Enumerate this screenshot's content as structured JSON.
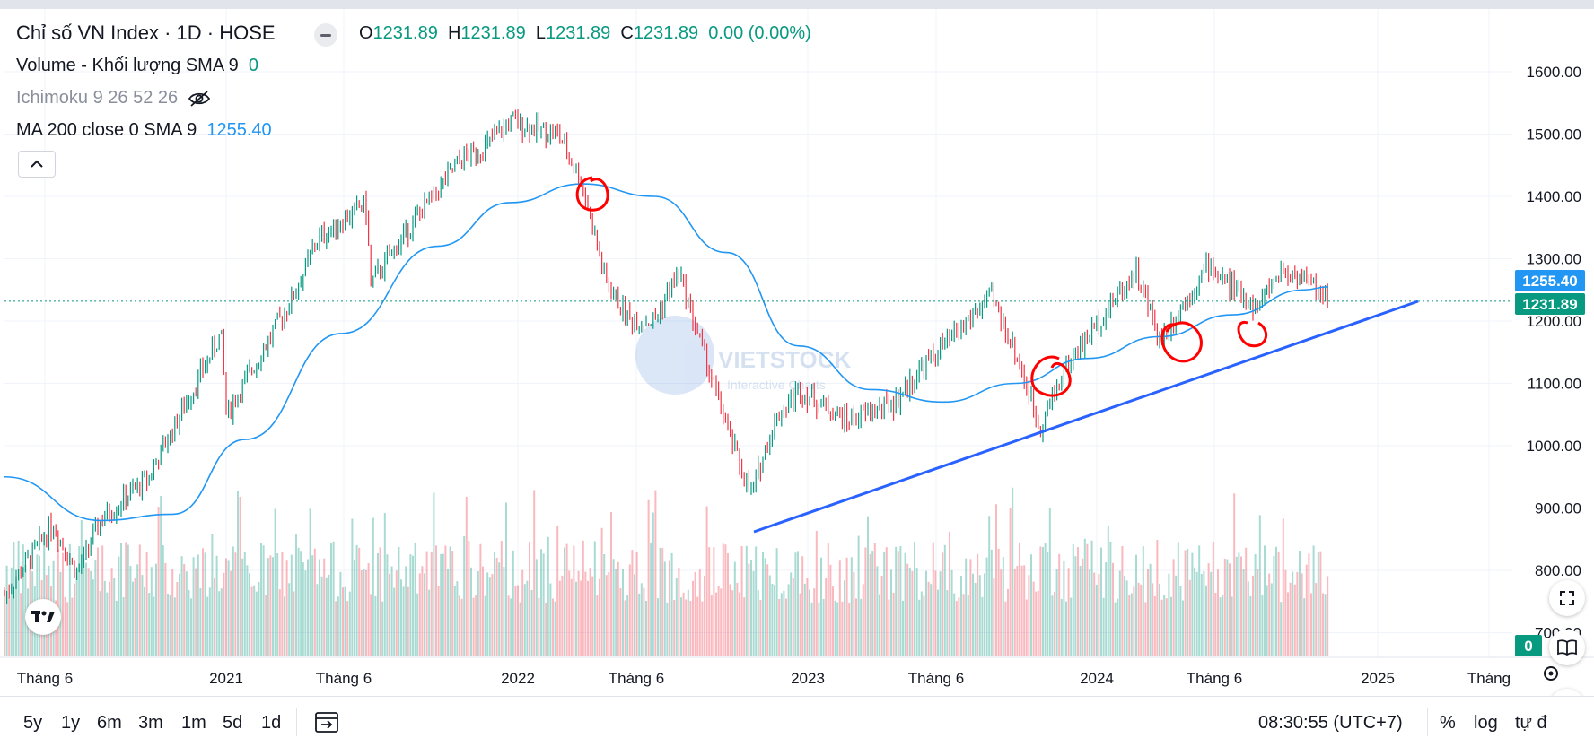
{
  "header": {
    "symbol_title": "Chỉ số VN Index · 1D · HOSE",
    "ohlc": {
      "o_label": "O",
      "o": "1231.89",
      "h_label": "H",
      "h": "1231.89",
      "l_label": "L",
      "l": "1231.89",
      "c_label": "C",
      "c": "1231.89",
      "change": "0.00 (0.00%)"
    },
    "volume_label": "Volume - Khối lượng SMA 9",
    "volume_value": "0",
    "ichimoku_label": "Ichimoku 9 26 52 26",
    "ma_label": "MA 200 close 0 SMA 9",
    "ma_value": "1255.40",
    "collapse_icon": "chevron-up-icon",
    "eye_icon": "eye-off-icon"
  },
  "watermark": {
    "text": "VIETSTOCK",
    "subtext": "Interactive Charts"
  },
  "price_scale": {
    "ticks": [
      "1600.00",
      "1500.00",
      "1400.00",
      "1300.00",
      "1200.00",
      "1100.00",
      "1000.00",
      "900.00",
      "800.00",
      "700.00"
    ],
    "ma_badge": "1255.40",
    "last_badge": "1231.89",
    "volume_badge": "0"
  },
  "time_scale": {
    "labels": [
      "Tháng 6",
      "2021",
      "Tháng 6",
      "2022",
      "Tháng 6",
      "2023",
      "Tháng 6",
      "2024",
      "Tháng 6",
      "2025",
      "Tháng"
    ]
  },
  "bottom": {
    "timeframes": [
      "5y",
      "1y",
      "6m",
      "3m",
      "1m",
      "5d",
      "1d"
    ],
    "time": "08:30:55 (UTC+7)",
    "percent": "%",
    "log": "log",
    "auto": "tự đ"
  },
  "colors": {
    "up": "#089981",
    "down": "#f23645",
    "ma": "#2196f3",
    "trendline": "#2962ff",
    "markup": "#ff0000",
    "last": "#089981"
  },
  "chart_data": {
    "type": "line",
    "title": "Chỉ số VN Index · 1D · HOSE",
    "ylim": [
      700,
      1650
    ],
    "y_scale": "linear",
    "grid": true,
    "series": [
      {
        "name": "Chỉ số VN Index",
        "x": [
          "2020-04",
          "2020-06",
          "2020-07",
          "2020-08",
          "2020-10",
          "2021-01",
          "2021-01",
          "2021-04",
          "2021-05",
          "2021-07",
          "2021-07",
          "2021-09",
          "2021-11",
          "2021-12",
          "2022-01",
          "2022-03",
          "2022-04",
          "2022-05",
          "2022-06",
          "2022-07",
          "2022-08",
          "2022-10",
          "2022-11",
          "2022-12",
          "2023-01",
          "2023-03",
          "2023-05",
          "2023-06",
          "2023-09",
          "2023-10",
          "2023-11",
          "2023-12",
          "2024-02",
          "2024-03",
          "2024-04",
          "2024-06",
          "2024-08",
          "2024-09",
          "2024-10",
          "2024-11"
        ],
        "values": [
          760,
          875,
          795,
          880,
          950,
          1180,
          1050,
          1240,
          1330,
          1390,
          1260,
          1360,
          1460,
          1480,
          1520,
          1500,
          1420,
          1260,
          1200,
          1200,
          1280,
          1030,
          920,
          1040,
          1090,
          1040,
          1070,
          1120,
          1240,
          1150,
          1030,
          1120,
          1230,
          1280,
          1170,
          1290,
          1220,
          1280,
          1270,
          1232
        ]
      },
      {
        "name": "MA 200 close 0 SMA 9",
        "x": [
          "2020-04",
          "2020-08",
          "2020-11",
          "2021-02",
          "2021-06",
          "2021-10",
          "2022-01",
          "2022-04",
          "2022-07",
          "2022-10",
          "2023-01",
          "2023-04",
          "2023-07",
          "2023-10",
          "2024-01",
          "2024-04",
          "2024-07",
          "2024-10",
          "2024-11"
        ],
        "values": [
          950,
          880,
          890,
          1010,
          1180,
          1320,
          1390,
          1420,
          1400,
          1310,
          1160,
          1090,
          1070,
          1100,
          1140,
          1175,
          1210,
          1250,
          1255
        ]
      }
    ],
    "volume_sma9": 0,
    "last_price": 1231.89,
    "annotations": [
      "trendline",
      "markup-circles"
    ]
  }
}
